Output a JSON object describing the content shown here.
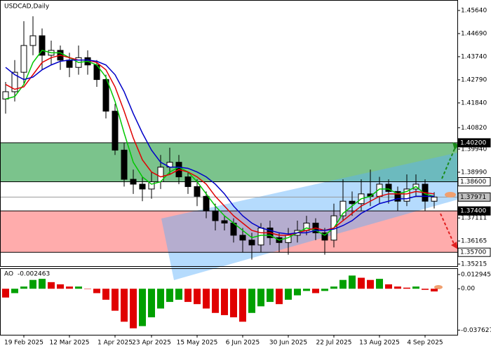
{
  "chart_data": [
    {
      "type": "candlestick",
      "title": "USDCAD,Daily",
      "categories": [
        null,
        null,
        "19 Feb 2025",
        null,
        null,
        null,
        null,
        "12 Mar 2025",
        null,
        null,
        null,
        null,
        "1 Apr 2025",
        null,
        null,
        null,
        "23 Apr 2025",
        null,
        null,
        null,
        null,
        "15 May 2025",
        null,
        null,
        null,
        null,
        "6 Jun 2025",
        null,
        null,
        null,
        null,
        "30 Jun 2025",
        null,
        null,
        null,
        null,
        "22 Jul 2025",
        null,
        null,
        null,
        null,
        "13 Aug 2025",
        null,
        null,
        null,
        null,
        "4 Sep 2025",
        null
      ],
      "open": [
        1.42,
        1.423,
        1.431,
        1.442,
        1.446,
        1.438,
        1.44,
        1.436,
        1.433,
        1.437,
        1.434,
        1.428,
        1.415,
        1.399,
        1.387,
        1.385,
        1.383,
        1.386,
        1.392,
        1.394,
        1.388,
        1.384,
        1.38,
        1.374,
        1.37,
        1.369,
        1.364,
        1.362,
        1.36,
        1.367,
        1.363,
        1.361,
        1.364,
        1.366,
        1.369,
        1.365,
        1.362,
        1.372,
        1.378,
        1.377,
        1.381,
        1.38,
        1.385,
        1.382,
        1.378,
        1.383,
        1.385,
        1.378
      ],
      "high": [
        1.427,
        1.436,
        1.452,
        1.454,
        1.449,
        1.444,
        1.442,
        1.439,
        1.442,
        1.44,
        1.436,
        1.43,
        1.418,
        1.402,
        1.391,
        1.388,
        1.39,
        1.397,
        1.4,
        1.397,
        1.39,
        1.387,
        1.382,
        1.377,
        1.372,
        1.371,
        1.367,
        1.365,
        1.369,
        1.37,
        1.365,
        1.367,
        1.37,
        1.372,
        1.371,
        1.367,
        1.377,
        1.387,
        1.382,
        1.387,
        1.391,
        1.388,
        1.387,
        1.384,
        1.389,
        1.389,
        1.387,
        1.3817
      ],
      "low": [
        1.414,
        1.419,
        1.426,
        1.438,
        1.432,
        1.434,
        1.432,
        1.429,
        1.43,
        1.43,
        1.425,
        1.412,
        1.397,
        1.384,
        1.381,
        1.378,
        1.379,
        1.383,
        1.389,
        1.385,
        1.381,
        1.376,
        1.371,
        1.366,
        1.366,
        1.361,
        1.357,
        1.354,
        1.357,
        1.36,
        1.357,
        1.356,
        1.361,
        1.364,
        1.362,
        1.356,
        1.359,
        1.37,
        1.372,
        1.374,
        1.376,
        1.377,
        1.377,
        1.374,
        1.376,
        1.38,
        1.374,
        1.375
      ],
      "close": [
        1.423,
        1.431,
        1.442,
        1.446,
        1.438,
        1.44,
        1.436,
        1.433,
        1.437,
        1.434,
        1.428,
        1.415,
        1.399,
        1.387,
        1.385,
        1.383,
        1.386,
        1.392,
        1.394,
        1.388,
        1.384,
        1.38,
        1.374,
        1.37,
        1.369,
        1.364,
        1.362,
        1.36,
        1.367,
        1.363,
        1.361,
        1.364,
        1.366,
        1.369,
        1.365,
        1.362,
        1.372,
        1.378,
        1.377,
        1.381,
        1.38,
        1.385,
        1.382,
        1.378,
        1.383,
        1.385,
        1.378,
        1.3797
      ],
      "series": [
        {
          "color": "#00c800",
          "values": [
            1.42,
            1.421,
            1.426,
            1.435,
            1.44,
            1.439,
            1.439,
            1.437,
            1.435,
            1.4355,
            1.434,
            1.429,
            1.419,
            1.406,
            1.394,
            1.388,
            1.385,
            1.386,
            1.39,
            1.392,
            1.39,
            1.386,
            1.381,
            1.376,
            1.372,
            1.369,
            1.366,
            1.363,
            1.364,
            1.364,
            1.362,
            1.363,
            1.365,
            1.367,
            1.366,
            1.364,
            1.367,
            1.373,
            1.376,
            1.379,
            1.38,
            1.383,
            1.383,
            1.381,
            1.382,
            1.384,
            1.381,
            1.38
          ]
        },
        {
          "color": "#e00000",
          "values": [
            1.426,
            1.424,
            1.425,
            1.43,
            1.435,
            1.437,
            1.438,
            1.437,
            1.436,
            1.436,
            1.435,
            1.432,
            1.425,
            1.415,
            1.404,
            1.395,
            1.39,
            1.388,
            1.389,
            1.391,
            1.39,
            1.388,
            1.385,
            1.38,
            1.376,
            1.372,
            1.369,
            1.366,
            1.365,
            1.365,
            1.364,
            1.364,
            1.365,
            1.366,
            1.367,
            1.366,
            1.367,
            1.37,
            1.373,
            1.376,
            1.378,
            1.38,
            1.381,
            1.381,
            1.381,
            1.382,
            1.3815,
            1.381
          ]
        },
        {
          "color": "#0000c8",
          "values": [
            1.433,
            1.43,
            1.428,
            1.429,
            1.432,
            1.434,
            1.4355,
            1.436,
            1.436,
            1.436,
            1.4355,
            1.434,
            1.43,
            1.423,
            1.414,
            1.406,
            1.399,
            1.394,
            1.392,
            1.392,
            1.3915,
            1.39,
            1.388,
            1.385,
            1.381,
            1.376,
            1.372,
            1.369,
            1.367,
            1.366,
            1.365,
            1.3645,
            1.365,
            1.365,
            1.366,
            1.366,
            1.3665,
            1.368,
            1.37,
            1.373,
            1.375,
            1.377,
            1.378,
            1.379,
            1.379,
            1.38,
            1.38,
            1.38
          ]
        }
      ],
      "ylim": [
        1.3513,
        1.4607
      ],
      "yticks": [
        {
          "value": 1.4564,
          "label": "1.45640"
        },
        {
          "value": 1.4469,
          "label": "1.44690"
        },
        {
          "value": 1.4374,
          "label": "1.43740"
        },
        {
          "value": 1.4279,
          "label": "1.42790"
        },
        {
          "value": 1.4184,
          "label": "1.41840"
        },
        {
          "value": 1.4082,
          "label": "1.40820"
        },
        {
          "value": 1.3994,
          "label": "1.39940"
        },
        {
          "value": 1.3899,
          "label": "1.38990"
        },
        {
          "value": 1.37111,
          "label": "1.37111"
        },
        {
          "value": 1.36165,
          "label": "1.36165"
        },
        {
          "value": 1.35215,
          "label": "1.35215"
        }
      ],
      "levels": [
        {
          "value": 1.402,
          "label": "1.40200"
        },
        {
          "value": 1.386,
          "label": "1.38600"
        },
        {
          "value": 1.37971,
          "label": "1.37971"
        },
        {
          "value": 1.374,
          "label": "1.37400"
        },
        {
          "value": 1.357,
          "label": "1.35700"
        }
      ],
      "zone_colors": [
        "#6dbd80",
        "#ffa3a3"
      ]
    },
    {
      "type": "ao",
      "title": "AO",
      "values": [
        -0.008,
        -0.004,
        0.002,
        0.008,
        0.009,
        0.006,
        0.004,
        0.002,
        0.002,
        0.0,
        -0.004,
        -0.01,
        -0.02,
        -0.03,
        -0.036,
        -0.034,
        -0.026,
        -0.018,
        -0.012,
        -0.01,
        -0.012,
        -0.014,
        -0.018,
        -0.022,
        -0.024,
        -0.026,
        -0.03,
        -0.022,
        -0.016,
        -0.012,
        -0.014,
        -0.01,
        -0.006,
        -0.002,
        -0.004,
        -0.002,
        0.002,
        0.008,
        0.012,
        0.01,
        0.008,
        0.009,
        0.004,
        0.002,
        0.001,
        0.002,
        -0.001,
        -0.002463
      ],
      "colors": [
        "#00a000",
        "#e00000"
      ],
      "ylim": [
        -0.0419,
        0.018
      ],
      "yticks": [
        0.012945,
        {
          "value": 0,
          "label": "0.00"
        },
        -0.037627
      ]
    }
  ]
}
